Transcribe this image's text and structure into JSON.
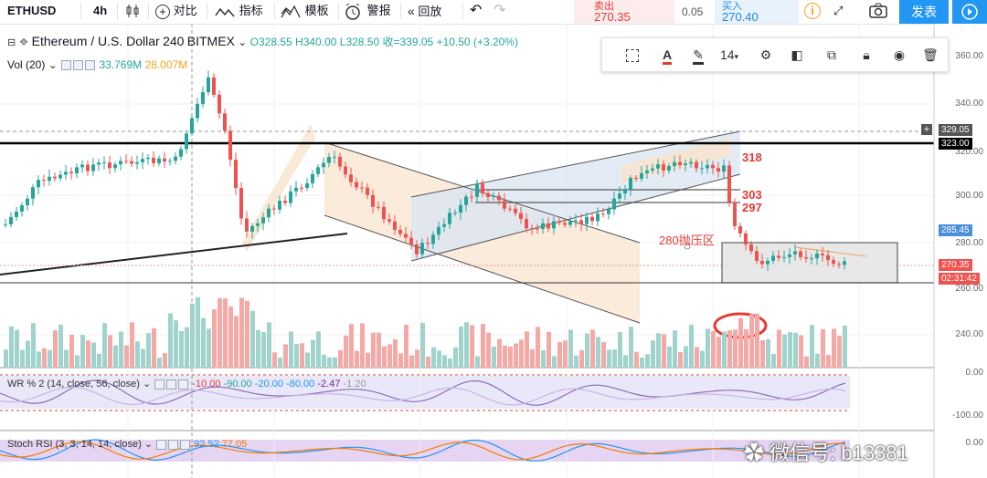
{
  "toolbar": {
    "symbol": "ETHUSD",
    "interval": "4h",
    "compare": "对比",
    "indicators": "指标",
    "templates": "模板",
    "alert": "警报",
    "replay": "回放",
    "publish": "发表"
  },
  "quote": {
    "sell_label": "卖出",
    "sell_price": "270.35",
    "spread": "0.05",
    "buy_label": "买入",
    "buy_price": "270.40"
  },
  "legend": {
    "title": "Ethereum / U.S. Dollar",
    "interval": "240",
    "exchange": "BITMEX",
    "open": "O328.55",
    "high": "H340.00",
    "low": "L328.50",
    "close": "收=339.05",
    "change": "+10.50 (+3.20%)",
    "vol_label": "Vol (20)",
    "vol_value": "33.769M",
    "vol_ma": "28.007M"
  },
  "draw_toolbar": {
    "font_size": "14"
  },
  "price_axis": {
    "labels": [
      "360.00",
      "340.00",
      "320.00",
      "300.00",
      "280.00",
      "260.00",
      "240.00"
    ],
    "tag_cross": "329.05",
    "tag_line": "323.00",
    "tag_blue": "285.45",
    "tag_last": "270.35",
    "tag_timer": "02:31:42",
    "ind1_top": "0.00",
    "ind1_bottom": "-100.00",
    "ind2_top": "0.00"
  },
  "annotations": {
    "a318": "318",
    "a303": "303",
    "a297": "297",
    "zone": "280抛压区"
  },
  "indicators": {
    "wr_label": "WR % 2 (14, close, 56, close)",
    "wr_v1": "-10.00",
    "wr_v2": "-90.00",
    "wr_v3": "-20.00",
    "wr_v4": "-80.00",
    "wr_v5": "-2.47",
    "wr_v6": "-1.20",
    "stoch_label": "Stoch RSI (3, 3, 14, 14, close)",
    "stoch_k": "92.52",
    "stoch_d": "77.05"
  },
  "watermark": "微信号: b13381",
  "colors": {
    "up": "#26a69a",
    "down": "#ef5350",
    "accent": "#2196f3"
  }
}
